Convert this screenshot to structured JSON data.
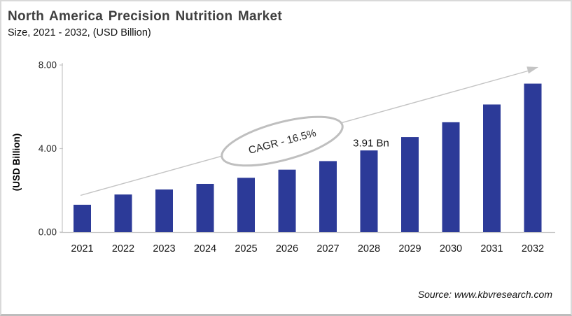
{
  "header": {
    "title": "North America Precision Nutrition Market",
    "subtitle": "Size, 2021 - 2032, (USD Billion)"
  },
  "footer": {
    "source": "Source: www.kbvresearch.com"
  },
  "chart_data": {
    "type": "bar",
    "title": "North America Precision Nutrition Market",
    "subtitle": "Size, 2021 - 2032, (USD Billion)",
    "categories": [
      "2021",
      "2022",
      "2023",
      "2024",
      "2025",
      "2026",
      "2027",
      "2028",
      "2029",
      "2030",
      "2031",
      "2032"
    ],
    "values": [
      1.31,
      1.8,
      2.04,
      2.31,
      2.6,
      2.99,
      3.4,
      3.91,
      4.55,
      5.26,
      6.11,
      7.11
    ],
    "xlabel": "",
    "ylabel": "(USD Billion)",
    "ylim": [
      0,
      8
    ],
    "yticks": [
      0,
      4,
      8
    ],
    "ytick_format_decimals": 2,
    "grid": false,
    "legend": false,
    "annotations": {
      "cagr_label": "CAGR - 16.5%",
      "data_label": {
        "category": "2028",
        "text": "3.91 Bn"
      },
      "trend_arrow": "upward diagonal arrow from 2021 bar to top right"
    },
    "colors": {
      "bar": "#2C3A98",
      "axis": "#C6C6C6",
      "trend_line": "#C4C4C4",
      "ellipse_stroke": "#BFBFBF",
      "text": "#141414",
      "title": "#3F3F3F"
    }
  }
}
